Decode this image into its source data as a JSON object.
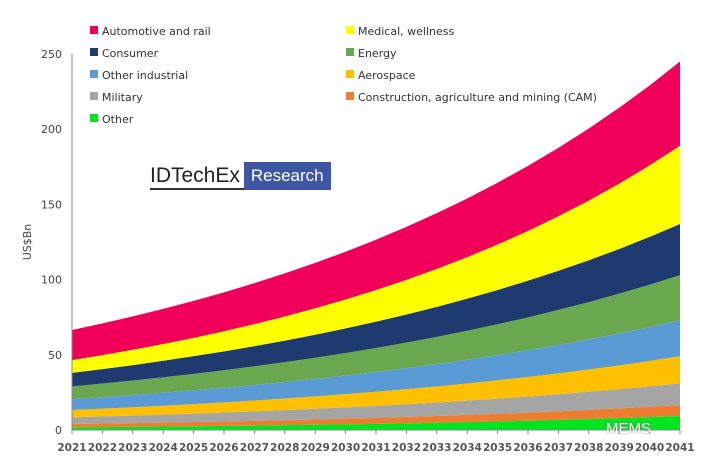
{
  "chart_data": {
    "type": "area",
    "stacked": true,
    "title": "",
    "xlabel": "",
    "ylabel": "US$Bn",
    "ylim": [
      0,
      250
    ],
    "yticks": [
      0,
      50,
      100,
      150,
      200,
      250
    ],
    "grid": false,
    "legend_placement": "top-left",
    "x": [
      "2021",
      "2022",
      "2023",
      "2024",
      "2025",
      "2026",
      "2027",
      "2028",
      "2029",
      "2030",
      "2031",
      "2032",
      "2033",
      "2034",
      "2035",
      "2036",
      "2037",
      "2038",
      "2039",
      "2040",
      "2041"
    ],
    "series": [
      {
        "name": "Other",
        "color": "#00e61e",
        "values": [
          1.8,
          1.95,
          2.12,
          2.3,
          2.5,
          2.71,
          2.94,
          3.2,
          3.47,
          3.77,
          4.09,
          4.44,
          4.82,
          5.23,
          5.68,
          6.17,
          6.7,
          7.27,
          7.89,
          8.57,
          9.3
        ]
      },
      {
        "name": "Construction, agriculture and mining (CAM)",
        "color": "#ed7d31",
        "values": [
          2.2,
          2.34,
          2.48,
          2.63,
          2.8,
          2.97,
          3.15,
          3.35,
          3.55,
          3.77,
          4.0,
          4.25,
          4.51,
          4.79,
          5.09,
          5.4,
          5.73,
          6.09,
          6.46,
          6.86,
          7.3
        ]
      },
      {
        "name": "Military",
        "color": "#a5a5a5",
        "values": [
          4.4,
          4.67,
          4.95,
          5.26,
          5.58,
          5.92,
          6.28,
          6.66,
          7.07,
          7.5,
          7.96,
          8.45,
          8.96,
          9.51,
          10.09,
          10.7,
          11.36,
          12.05,
          12.79,
          13.57,
          14.4
        ]
      },
      {
        "name": "Aerospace",
        "color": "#ffc000",
        "values": [
          4.9,
          5.23,
          5.58,
          5.96,
          6.36,
          6.78,
          7.24,
          7.72,
          8.24,
          8.8,
          9.39,
          10.02,
          10.69,
          11.41,
          12.18,
          13.0,
          13.87,
          14.8,
          15.8,
          16.86,
          18.0
        ]
      },
      {
        "name": "Other industrial",
        "color": "#5b9bd5",
        "values": [
          7.2,
          7.65,
          8.12,
          8.62,
          9.16,
          9.72,
          10.33,
          10.97,
          11.65,
          12.37,
          13.14,
          13.95,
          14.82,
          15.73,
          16.71,
          17.75,
          18.85,
          20.01,
          21.25,
          22.57,
          24.0
        ]
      },
      {
        "name": "Energy",
        "color": "#6aa84f",
        "values": [
          8.5,
          9.05,
          9.64,
          10.27,
          10.94,
          11.65,
          12.41,
          13.22,
          14.08,
          15.0,
          15.97,
          17.01,
          18.12,
          19.3,
          20.55,
          21.89,
          23.32,
          24.84,
          26.45,
          28.18,
          30.0
        ]
      },
      {
        "name": "Consumer",
        "color": "#1f3a6e",
        "values": [
          9.0,
          9.62,
          10.28,
          10.98,
          11.74,
          12.54,
          13.4,
          14.32,
          15.31,
          16.36,
          17.48,
          18.68,
          19.97,
          21.34,
          22.8,
          24.37,
          26.04,
          27.83,
          29.74,
          31.79,
          34.0
        ]
      },
      {
        "name": "Medical, wellness",
        "color": "#ffff00",
        "values": [
          8.5,
          9.31,
          10.19,
          11.15,
          12.21,
          13.37,
          14.64,
          16.02,
          17.54,
          19.21,
          21.03,
          23.02,
          25.2,
          27.59,
          30.21,
          33.07,
          36.21,
          39.64,
          43.4,
          47.51,
          52.0
        ]
      },
      {
        "name": "Automotive and rail",
        "color": "#f0005a",
        "values": [
          20,
          21.06,
          22.17,
          23.34,
          24.57,
          25.86,
          27.23,
          28.66,
          30.18,
          31.77,
          33.45,
          35.21,
          37.07,
          39.03,
          41.09,
          43.25,
          45.54,
          47.94,
          50.47,
          53.13,
          56.0
        ]
      }
    ],
    "legend_order": [
      "Automotive and rail",
      "Medical, wellness",
      "Consumer",
      "Energy",
      "Other industrial",
      "Aerospace",
      "Military",
      "Construction, agriculture and mining (CAM)",
      "Other"
    ]
  },
  "logo": {
    "name": "IDTechEx",
    "tag": "Research"
  },
  "watermark": "MEMS"
}
